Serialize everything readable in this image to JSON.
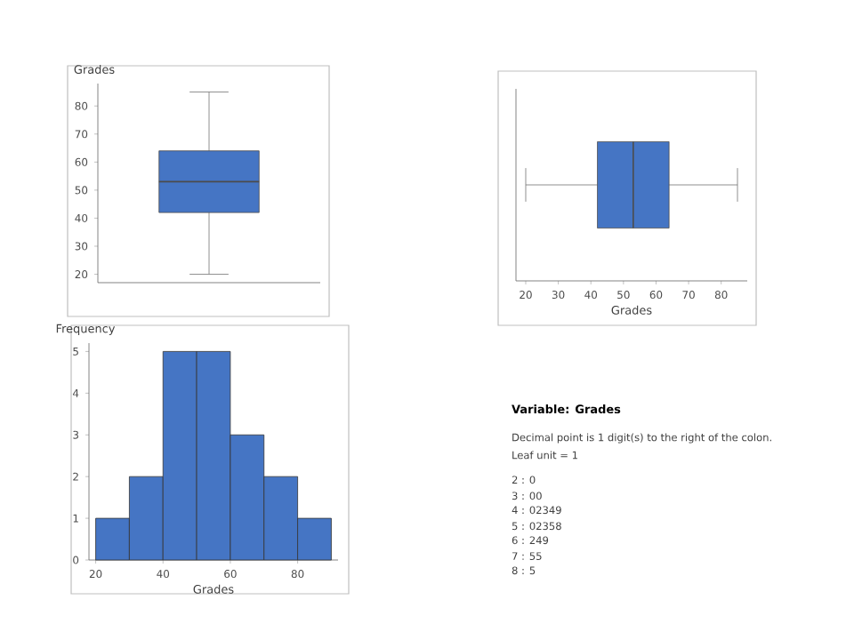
{
  "chart_data": [
    {
      "type": "box",
      "ylabel": "Grades",
      "categories": [
        null
      ],
      "color": "#4575c4",
      "boxes": [
        {
          "low": 20,
          "q1": 42,
          "median": 53,
          "q3": 64,
          "high": 85
        }
      ],
      "ylim": [
        17,
        88
      ],
      "yticks": [
        20,
        30,
        40,
        50,
        60,
        70,
        80
      ]
    },
    {
      "type": "box",
      "orientation": "horizontal",
      "xlabel": "Grades",
      "categories": [
        null
      ],
      "color": "#4575c4",
      "boxes": [
        {
          "low": 20,
          "q1": 42,
          "median": 53,
          "q3": 64,
          "high": 85
        }
      ],
      "xlim": [
        17,
        88
      ],
      "xticks": [
        20,
        30,
        40,
        50,
        60,
        70,
        80
      ]
    },
    {
      "type": "histogram",
      "xlabel": "Grades",
      "ylabel": "Frequency",
      "color": "#4575c4",
      "bins": [
        20,
        30,
        40,
        50,
        60,
        70,
        80,
        90
      ],
      "values": [
        1,
        2,
        5,
        5,
        3,
        2,
        1
      ],
      "xlim": [
        18,
        92
      ],
      "ylim": [
        0,
        5.2
      ],
      "xticks": [
        20,
        40,
        60,
        80
      ],
      "yticks": [
        0,
        1,
        2,
        3,
        4,
        5
      ]
    },
    {
      "type": "other",
      "title": "Variable: Grades",
      "annotations": [
        "Decimal point is 1 digit(s) to the right of the colon.",
        "Leaf unit = 1",
        "2 : 0",
        "3 : 00",
        "4 : 02349",
        "5 : 02358",
        "6 : 249",
        "7 : 55",
        "8 : 5"
      ]
    }
  ]
}
